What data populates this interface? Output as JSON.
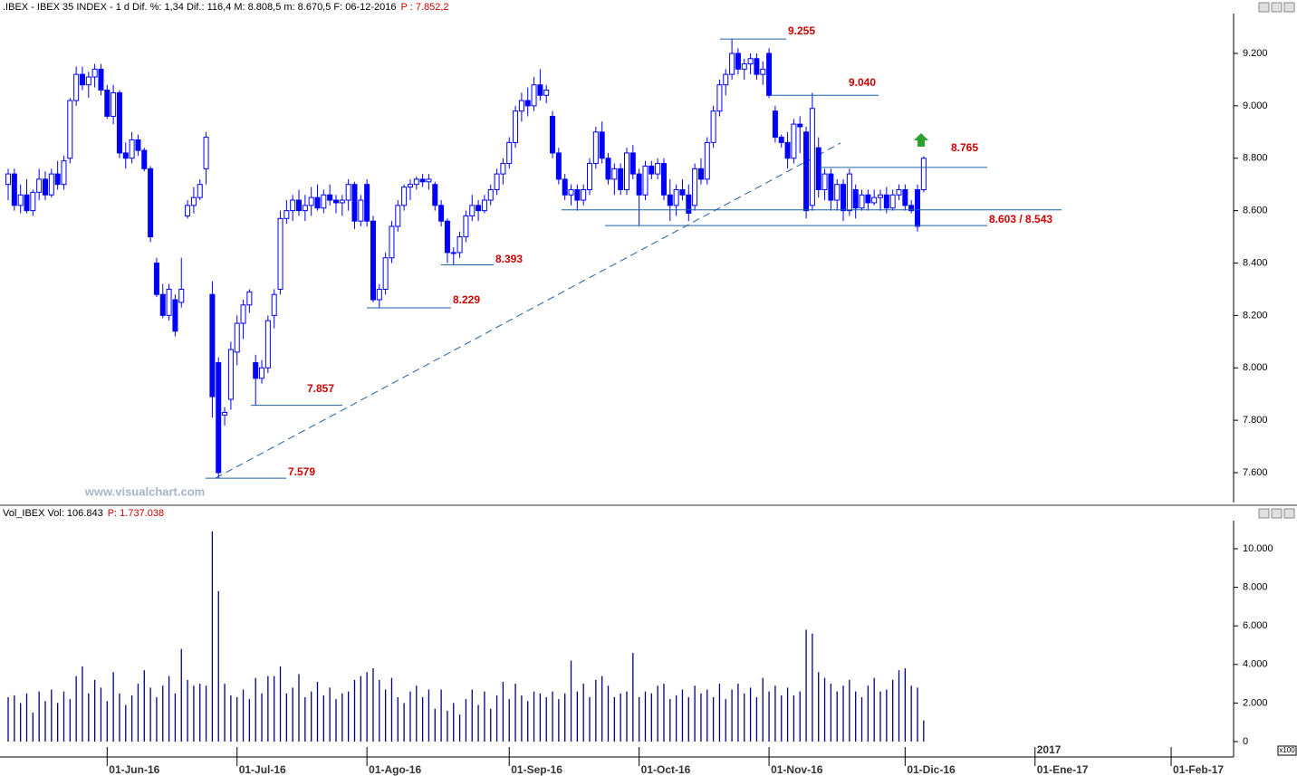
{
  "chart_data": [
    {
      "type": "candlestick",
      "title": ".IBEX - IBEX 35 INDEX - 1 d Dif. %: 1,34 Dif.: 116,4 M: 8.808,5 m: 8.670,5 F: 06-12-2016",
      "subtitle": "P : 7.852,2",
      "color": "#0000ff",
      "open": [
        8700,
        8740,
        8620,
        8660,
        8600,
        8670,
        8720,
        8660,
        8740,
        8700,
        8800,
        9020,
        9120,
        9080,
        9110,
        9140,
        9060,
        8960,
        9050,
        8820,
        8800,
        8870,
        8830,
        8760,
        8400,
        8280,
        8200,
        8260,
        8250,
        8580,
        8620,
        8650,
        8760,
        8280,
        8020,
        7820,
        7880,
        8060,
        8170,
        8240,
        8020,
        7960,
        8000,
        8200,
        8300,
        8570,
        8600,
        8640,
        8600,
        8620,
        8650,
        8610,
        8660,
        8640,
        8630,
        8640,
        8700,
        8560,
        8700,
        8560,
        8260,
        8300,
        8420,
        8540,
        8620,
        8690,
        8700,
        8720,
        8710,
        8700,
        8620,
        8560,
        8440,
        8440,
        8500,
        8580,
        8620,
        8600,
        8640,
        8680,
        8740,
        8780,
        8860,
        8980,
        9020,
        9000,
        9080,
        9040,
        8960,
        8820,
        8720,
        8660,
        8680,
        8640,
        8680,
        8780,
        8900,
        8800,
        8720,
        8760,
        8680,
        8820,
        8740,
        8660,
        8770,
        8740,
        8780,
        8660,
        8620,
        8680,
        8660,
        8620,
        8760,
        8720,
        8860,
        8980,
        9080,
        9120,
        9200,
        9140,
        9160,
        9180,
        9120,
        9200,
        8980,
        8880,
        8860,
        8800,
        8930,
        8900,
        8620,
        8840,
        8680,
        8740,
        8640,
        8700,
        8600,
        8680,
        8610,
        8660,
        8630,
        8650,
        8660,
        8610,
        8660,
        8680,
        8620,
        8680,
        8680
      ],
      "high": [
        8760,
        8760,
        8700,
        8720,
        8680,
        8760,
        8750,
        8760,
        8790,
        8810,
        9030,
        9150,
        9150,
        9130,
        9160,
        9160,
        9080,
        9080,
        9060,
        8860,
        8900,
        8890,
        8840,
        8770,
        8420,
        8320,
        8320,
        8280,
        8420,
        8640,
        8690,
        8720,
        8900,
        8330,
        8040,
        7850,
        8100,
        8200,
        8260,
        8300,
        8050,
        8030,
        8200,
        8300,
        8600,
        8640,
        8660,
        8680,
        8660,
        8690,
        8700,
        8680,
        8700,
        8660,
        8660,
        8720,
        8710,
        8660,
        8720,
        8580,
        8320,
        8440,
        8560,
        8640,
        8700,
        8720,
        8730,
        8740,
        8740,
        8710,
        8640,
        8570,
        8460,
        8520,
        8600,
        8660,
        8640,
        8660,
        8700,
        8760,
        8800,
        8880,
        9000,
        9050,
        9070,
        9110,
        9140,
        9080,
        8980,
        8840,
        8740,
        8700,
        8700,
        8700,
        8800,
        8920,
        8940,
        8820,
        8780,
        8780,
        8840,
        8850,
        8760,
        8790,
        8790,
        8800,
        8800,
        8720,
        8700,
        8720,
        8700,
        8780,
        8800,
        8880,
        9000,
        9100,
        9140,
        9255,
        9220,
        9180,
        9200,
        9200,
        9170,
        9220,
        9000,
        8890,
        8900,
        8950,
        8960,
        8920,
        9050,
        8880,
        8760,
        8760,
        8720,
        8720,
        8760,
        8700,
        8680,
        8680,
        8680,
        8680,
        8690,
        8680,
        8700,
        8700,
        8640,
        8700,
        8808
      ],
      "low": [
        8640,
        8600,
        8590,
        8590,
        8580,
        8640,
        8640,
        8650,
        8680,
        8680,
        8780,
        9000,
        9060,
        9030,
        9070,
        9040,
        8950,
        8930,
        8800,
        8760,
        8780,
        8810,
        8750,
        8480,
        8270,
        8190,
        8180,
        8120,
        8230,
        8570,
        8590,
        8640,
        8700,
        7810,
        7579,
        7780,
        7840,
        8010,
        8110,
        8210,
        7857,
        7940,
        7980,
        8150,
        8280,
        8550,
        8560,
        8580,
        8560,
        8580,
        8600,
        8590,
        8620,
        8590,
        8580,
        8600,
        8530,
        8540,
        8540,
        8250,
        8229,
        8280,
        8400,
        8520,
        8600,
        8640,
        8680,
        8690,
        8680,
        8600,
        8540,
        8400,
        8393,
        8420,
        8480,
        8560,
        8560,
        8590,
        8620,
        8660,
        8700,
        8760,
        8840,
        8940,
        8960,
        8980,
        9020,
        9010,
        8800,
        8700,
        8640,
        8620,
        8600,
        8620,
        8660,
        8760,
        8780,
        8700,
        8660,
        8660,
        8660,
        8720,
        8543,
        8640,
        8720,
        8720,
        8640,
        8560,
        8580,
        8640,
        8560,
        8600,
        8700,
        8700,
        8840,
        8960,
        9040,
        9100,
        9120,
        9100,
        9120,
        9100,
        9080,
        9030,
        8860,
        8840,
        8760,
        8780,
        8820,
        8570,
        8600,
        8650,
        8640,
        8600,
        8600,
        8560,
        8580,
        8570,
        8600,
        8600,
        8620,
        8600,
        8590,
        8600,
        8640,
        8600,
        8590,
        8520,
        8670
      ],
      "close": [
        8740,
        8620,
        8660,
        8600,
        8670,
        8720,
        8660,
        8740,
        8700,
        8790,
        9020,
        9120,
        9080,
        9110,
        9140,
        9060,
        8960,
        9050,
        8820,
        8800,
        8870,
        8830,
        8760,
        8500,
        8280,
        8200,
        8300,
        8140,
        8300,
        8620,
        8650,
        8700,
        8880,
        7890,
        7600,
        7830,
        8070,
        8170,
        8240,
        8290,
        7960,
        8000,
        8180,
        8280,
        8570,
        8600,
        8640,
        8600,
        8620,
        8650,
        8610,
        8660,
        8640,
        8630,
        8640,
        8700,
        8560,
        8640,
        8560,
        8260,
        8300,
        8420,
        8540,
        8620,
        8690,
        8700,
        8720,
        8710,
        8720,
        8620,
        8560,
        8440,
        8440,
        8500,
        8580,
        8620,
        8600,
        8640,
        8680,
        8740,
        8780,
        8860,
        8980,
        9020,
        9000,
        9080,
        9040,
        9060,
        8820,
        8720,
        8660,
        8680,
        8640,
        8680,
        8780,
        8900,
        8800,
        8720,
        8760,
        8680,
        8820,
        8740,
        8660,
        8770,
        8740,
        8780,
        8660,
        8620,
        8680,
        8660,
        8590,
        8760,
        8720,
        8860,
        8980,
        9080,
        9120,
        9200,
        9140,
        9160,
        9180,
        9120,
        9140,
        9040,
        8880,
        8860,
        8800,
        8930,
        8920,
        8600,
        8990,
        8680,
        8740,
        8640,
        8700,
        8600,
        8740,
        8610,
        8660,
        8630,
        8650,
        8660,
        8610,
        8660,
        8680,
        8620,
        8600,
        8540,
        8800
      ],
      "xlim": [
        -1.32,
        198.1
      ],
      "xticks": [
        {
          "value": 16,
          "label": "01-Jun-16"
        },
        {
          "value": 37,
          "label": "01-Jul-16"
        },
        {
          "value": 58,
          "label": "01-Ago-16"
        },
        {
          "value": 81,
          "label": "01-Sep-16"
        },
        {
          "value": 102,
          "label": "01-Oct-16"
        },
        {
          "value": 123,
          "label": "01-Nov-16"
        },
        {
          "value": 145,
          "label": "01-Dic-16"
        },
        {
          "value": 166,
          "label": "01-Ene-17"
        },
        {
          "value": 188,
          "label": "01-Feb-17"
        }
      ],
      "year_marker": "2017",
      "ylim": [
        7486,
        9352
      ],
      "yticks": [
        {
          "value": 7600,
          "label": "7.600"
        },
        {
          "value": 7800,
          "label": "7.800"
        },
        {
          "value": 8000,
          "label": "8.000"
        },
        {
          "value": 8200,
          "label": "8.200"
        },
        {
          "value": 8400,
          "label": "8.400"
        },
        {
          "value": 8600,
          "label": "8.600"
        },
        {
          "value": 8800,
          "label": "8.800"
        },
        {
          "value": 9000,
          "label": "9.000"
        },
        {
          "value": 9200,
          "label": "9.200"
        }
      ],
      "levels": [
        {
          "label": "9.255",
          "values": [
            9255
          ]
        },
        {
          "label": "9.040",
          "values": [
            9040
          ]
        },
        {
          "label": "8.765",
          "values": [
            8765
          ]
        },
        {
          "label": "8.603 / 8.543",
          "values": [
            8603,
            8543
          ]
        },
        {
          "label": "8.393",
          "values": [
            8393
          ]
        },
        {
          "label": "8.229",
          "values": [
            8229
          ]
        },
        {
          "label": "7.857",
          "values": [
            7857
          ]
        },
        {
          "label": "7.579",
          "values": [
            7579
          ]
        }
      ],
      "watermark": "www.visualchart.com"
    },
    {
      "type": "bar",
      "title": "Vol_IBEX Vol: 106.843",
      "subtitle": "P: 1.737.038",
      "color": "#000080",
      "values": [
        2300,
        2400,
        2000,
        2500,
        1500,
        2600,
        2100,
        2700,
        2000,
        2600,
        2200,
        3400,
        3900,
        2500,
        3200,
        2800,
        2100,
        3600,
        2500,
        1900,
        2400,
        3000,
        3700,
        2800,
        2300,
        2900,
        3400,
        2500,
        4800,
        3200,
        2900,
        3000,
        2900,
        10900,
        7800,
        3000,
        2400,
        2300,
        2700,
        2200,
        3300,
        2500,
        3400,
        3400,
        3900,
        2500,
        2800,
        3500,
        2300,
        2600,
        3100,
        2400,
        2800,
        2200,
        2500,
        2600,
        3200,
        3400,
        3600,
        3800,
        3200,
        2700,
        3300,
        2300,
        2000,
        2600,
        2900,
        2300,
        2700,
        1700,
        2700,
        1600,
        2000,
        1400,
        2200,
        2700,
        1900,
        2600,
        1700,
        2400,
        3100,
        2200,
        3000,
        2400,
        2100,
        2600,
        2500,
        2300,
        2600,
        2200,
        2500,
        4200,
        2600,
        3000,
        2300,
        3200,
        3400,
        2900,
        2300,
        2500,
        2600,
        4600,
        2300,
        2600,
        2500,
        2900,
        3000,
        2200,
        2400,
        2700,
        2300,
        2900,
        2500,
        2700,
        2300,
        3000,
        2200,
        2700,
        3000,
        2500,
        2800,
        2300,
        3300,
        2600,
        2900,
        2400,
        2800,
        2400,
        2600,
        5800,
        5600,
        3600,
        3300,
        3000,
        2600,
        2900,
        3200,
        2600,
        2300,
        2900,
        3300,
        2600,
        2700,
        3200,
        3700,
        3800,
        2900,
        2800,
        1100
      ],
      "ylim": [
        -751,
        11455
      ],
      "yticks": [
        0,
        {
          "value": 2000,
          "label": "2.000"
        },
        {
          "value": 4000,
          "label": "4.000"
        },
        {
          "value": 6000,
          "label": "6.000"
        },
        {
          "value": 8000,
          "label": "8.000"
        },
        {
          "value": 10000,
          "label": "10.000"
        }
      ],
      "scale_note": "x100"
    }
  ]
}
